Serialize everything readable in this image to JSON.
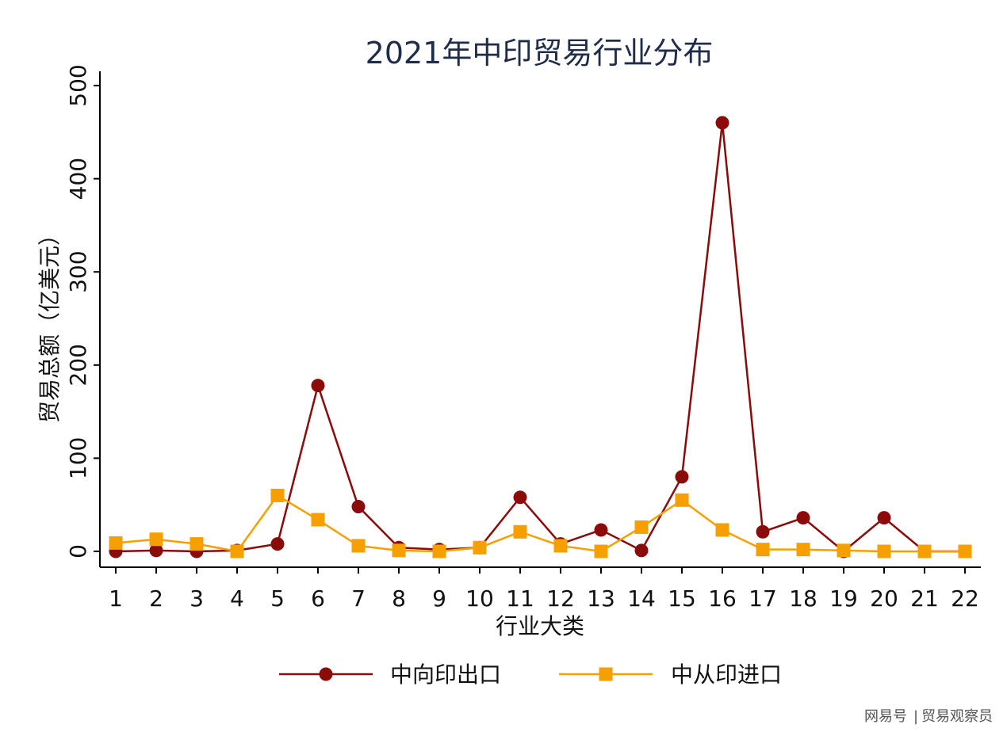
{
  "chart_data": {
    "type": "line",
    "title": "2021年中印贸易行业分布",
    "xlabel": "行业大类",
    "ylabel": "贸易总额（亿美元）",
    "x": [
      1,
      2,
      3,
      4,
      5,
      6,
      7,
      8,
      9,
      10,
      11,
      12,
      13,
      14,
      15,
      16,
      17,
      18,
      19,
      20,
      21,
      22
    ],
    "ylim": [
      0,
      500
    ],
    "yticks": [
      0,
      100,
      200,
      300,
      400,
      500
    ],
    "grid": false,
    "legend_position": "bottom",
    "series": [
      {
        "name": "中向印出口",
        "color": "#8b0a0a",
        "marker": "circle",
        "values": [
          0,
          1,
          0,
          1,
          8,
          178,
          48,
          4,
          2,
          4,
          58,
          8,
          23,
          1,
          80,
          460,
          21,
          36,
          0,
          36,
          0,
          0
        ]
      },
      {
        "name": "中从印进口",
        "color": "#f5a000",
        "marker": "square",
        "values": [
          9,
          13,
          8,
          0,
          60,
          34,
          6,
          1,
          0,
          4,
          21,
          6,
          0,
          26,
          55,
          23,
          2,
          2,
          1,
          0,
          0,
          0
        ]
      }
    ]
  },
  "watermark": {
    "left": "网易号",
    "separator": "|",
    "right": "贸易观察员"
  }
}
